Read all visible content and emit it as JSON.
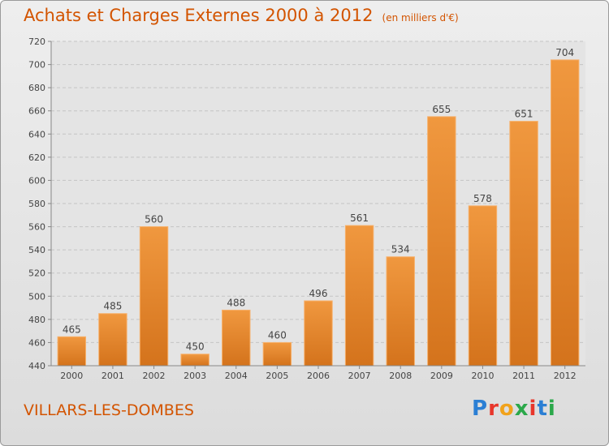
{
  "chart_data": {
    "type": "bar",
    "title": "Achats et Charges Externes 2000 à 2012",
    "unit_label": "(en milliers d'€)",
    "categories": [
      "2000",
      "2001",
      "2002",
      "2003",
      "2004",
      "2005",
      "2006",
      "2007",
      "2008",
      "2009",
      "2010",
      "2011",
      "2012"
    ],
    "values": [
      465,
      485,
      560,
      450,
      488,
      460,
      496,
      561,
      534,
      655,
      578,
      651,
      704
    ],
    "ylim": [
      440,
      720
    ],
    "yticks": [
      440,
      460,
      480,
      500,
      520,
      540,
      560,
      580,
      600,
      620,
      640,
      660,
      680,
      700,
      720
    ],
    "grid": true,
    "bar_color": "#f0983f",
    "bar_color_dark": "#d4731c"
  },
  "footer": {
    "place_name": "VILLARS-LES-DOMBES",
    "logo_text": "Proxiti",
    "logo_colors": [
      "#2b7fd4",
      "#e8362b",
      "#f1a21b",
      "#2ba84a",
      "#e8362b",
      "#2b7fd4",
      "#2ba84a"
    ]
  }
}
